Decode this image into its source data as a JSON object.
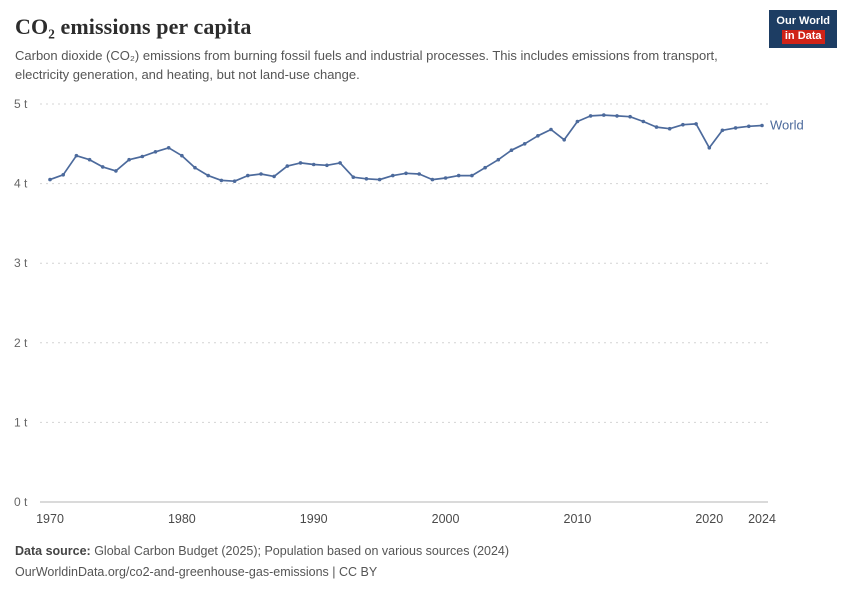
{
  "colors": {
    "line": "#4c6a9c",
    "grid": "#d4d4d4",
    "zero_line": "#b5b5b5",
    "logo_bg": "#1d3d63",
    "logo_accent": "#cf2318",
    "tick_label": "#666666",
    "x_tick_label": "#4a4a4a"
  },
  "header": {
    "title": "CO₂ emissions per capita",
    "subtitle": "Carbon dioxide (CO₂) emissions from burning fossil fuels and industrial processes. This includes emissions from transport, electricity generation, and heating, but not land-use change.",
    "logo": {
      "line1": "Our World",
      "line2": "in Data"
    }
  },
  "chart_data": {
    "type": "line",
    "title": "CO₂ emissions per capita",
    "x": [
      1970,
      1971,
      1972,
      1973,
      1974,
      1975,
      1976,
      1977,
      1978,
      1979,
      1980,
      1981,
      1982,
      1983,
      1984,
      1985,
      1986,
      1987,
      1988,
      1989,
      1990,
      1991,
      1992,
      1993,
      1994,
      1995,
      1996,
      1997,
      1998,
      1999,
      2000,
      2001,
      2002,
      2003,
      2004,
      2005,
      2006,
      2007,
      2008,
      2009,
      2010,
      2011,
      2012,
      2013,
      2014,
      2015,
      2016,
      2017,
      2018,
      2019,
      2020,
      2021,
      2022,
      2023,
      2024
    ],
    "series": [
      {
        "name": "World",
        "values": [
          4.05,
          4.11,
          4.35,
          4.3,
          4.21,
          4.16,
          4.3,
          4.34,
          4.4,
          4.45,
          4.35,
          4.2,
          4.1,
          4.04,
          4.03,
          4.1,
          4.12,
          4.09,
          4.22,
          4.26,
          4.24,
          4.23,
          4.26,
          4.08,
          4.06,
          4.05,
          4.1,
          4.13,
          4.12,
          4.05,
          4.07,
          4.1,
          4.1,
          4.2,
          4.3,
          4.42,
          4.5,
          4.6,
          4.68,
          4.55,
          4.78,
          4.85,
          4.86,
          4.85,
          4.84,
          4.78,
          4.71,
          4.69,
          4.74,
          4.75,
          4.45,
          4.67,
          4.7,
          4.72,
          4.73
        ]
      }
    ],
    "xlabel": "",
    "ylabel": "",
    "ylim": [
      0,
      5
    ],
    "yticks": [
      0,
      1,
      2,
      3,
      4,
      5
    ],
    "ytick_labels": [
      "0 t",
      "1 t",
      "2 t",
      "3 t",
      "4 t",
      "5 t"
    ],
    "xticks": [
      1970,
      1980,
      1990,
      2000,
      2010,
      2020,
      2024
    ],
    "grid": "dashed-horizontal",
    "legend": "end-of-line-label"
  },
  "footer": {
    "source_label": "Data source:",
    "source_text": " Global Carbon Budget (2025); Population based on various sources (2024)",
    "cc_line": "OurWorldinData.org/co2-and-greenhouse-gas-emissions | CC BY"
  }
}
